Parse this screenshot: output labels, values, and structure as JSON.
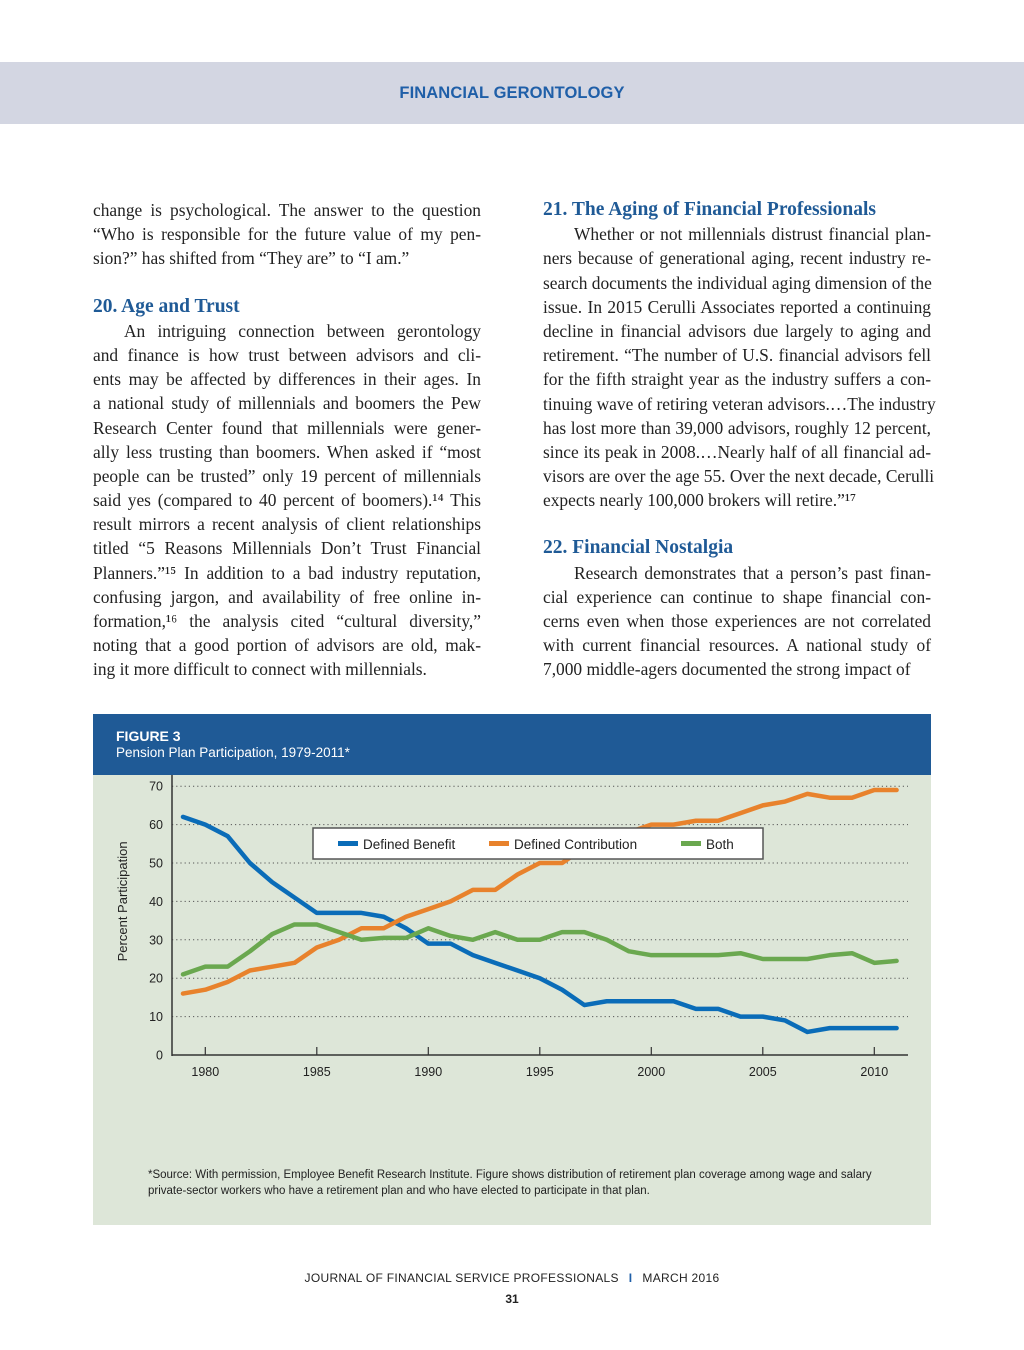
{
  "header": {
    "title": "FINANCIAL GERONTOLOGY"
  },
  "left_column": {
    "intro_lines": [
      "change is psychological. The answer to the question",
      "“Who is responsible for the future value of my pen-",
      "sion?” has shifted from “They are” to “I am.”"
    ],
    "section20": {
      "heading": "20. Age and Trust",
      "lines": [
        "An intriguing connection between gerontology",
        "and finance is how trust between advisors and cli-",
        "ents may be affected by differences in their ages. In",
        "a national study of millennials and boomers the Pew",
        "Research Center found that millennials were gener-",
        "ally less trusting than boomers. When asked if “most",
        "people can be trusted” only 19 percent of millennials",
        "said yes (compared to 40 percent of boomers).¹⁴ This",
        "result mirrors a recent analysis of client relationships",
        "titled “5 Reasons Millennials Don’t Trust Financial",
        "Planners.”¹⁵ In addition to a bad industry reputation,",
        "confusing jargon, and availability of free online in-",
        "formation,¹⁶ the analysis cited “cultural diversity,”",
        "noting that a good portion of advisors are old, mak-",
        "ing it more difficult to connect with millennials."
      ]
    }
  },
  "right_column": {
    "section21": {
      "heading": "21. The Aging of Financial Professionals",
      "lines": [
        "Whether or not millennials distrust financial plan-",
        "ners because of generational aging, recent industry re-",
        "search documents the individual aging dimension of the",
        "issue. In 2015 Cerulli Associates reported a continuing",
        "decline in financial advisors due largely to aging and",
        "retirement. “The number of U.S. financial advisors fell",
        "for the fifth straight year as the industry suffers a con-",
        "tinuing wave of retiring veteran advisors.…The industry",
        "has lost more than 39,000 advisors, roughly 12 percent,",
        "since its peak in 2008.…Nearly half of all financial ad-",
        "visors are over the age 55. Over the next decade, Cerulli",
        "expects nearly 100,000 brokers will retire.”¹⁷"
      ]
    },
    "section22": {
      "heading": "22. Financial Nostalgia",
      "lines": [
        "Research demonstrates that a person’s past finan-",
        "cial experience can continue to shape financial con-",
        "cerns even when those experiences are not correlated",
        "with current financial resources. A national study of",
        "7,000 middle-agers documented the strong impact of"
      ]
    }
  },
  "figure": {
    "label": "FIGURE 3",
    "title": "Pension Plan Participation, 1979-2011*",
    "note": "*Source: With permission, Employee Benefit Research Institute. Figure shows distribution of retirement plan coverage among wage and salary private-sector workers who have a retirement plan and who have elected to participate in that plan."
  },
  "chart_data": {
    "type": "line",
    "title": "Pension Plan Participation, 1979-2011*",
    "xlabel": "",
    "ylabel": "Percent Participation",
    "xlim": [
      1979,
      2011
    ],
    "ylim": [
      0,
      80
    ],
    "xticks": [
      1980,
      1985,
      1990,
      1995,
      2000,
      2005,
      2010
    ],
    "yticks": [
      0,
      10,
      20,
      30,
      40,
      50,
      60,
      70,
      80
    ],
    "grid": "horizontal dotted",
    "legend_position": "top-center",
    "x": [
      1979,
      1980,
      1981,
      1982,
      1983,
      1984,
      1985,
      1986,
      1987,
      1988,
      1989,
      1990,
      1991,
      1992,
      1993,
      1994,
      1995,
      1996,
      1997,
      1998,
      1999,
      2000,
      2001,
      2002,
      2003,
      2004,
      2005,
      2006,
      2007,
      2008,
      2009,
      2010,
      2011
    ],
    "series": [
      {
        "name": "Defined Benefit",
        "color": "#0a6cb8",
        "values": [
          62,
          60,
          57,
          50,
          45,
          41,
          37,
          37,
          37,
          36,
          33,
          29,
          29,
          26,
          24,
          22,
          20,
          17,
          13,
          14,
          14,
          14,
          14,
          12,
          12,
          10,
          10,
          9,
          6,
          7,
          7,
          7,
          7
        ]
      },
      {
        "name": "Defined Contribution",
        "color": "#e8822c",
        "values": [
          16,
          17,
          19,
          22,
          23,
          24,
          28,
          30,
          33,
          33,
          36,
          38,
          40,
          43,
          43,
          47,
          50,
          50,
          54,
          55,
          58,
          60,
          60,
          61,
          61,
          63,
          65,
          66,
          68,
          67,
          67,
          69,
          69
        ]
      },
      {
        "name": "Both",
        "color": "#6aa84f",
        "values": [
          21,
          23,
          23,
          27,
          31.5,
          34,
          34,
          32,
          30,
          30.5,
          30.5,
          33,
          31,
          30,
          32,
          30,
          30,
          32,
          32,
          30,
          27,
          26,
          26,
          26,
          26,
          26.5,
          25,
          25,
          25,
          26,
          26.5,
          24,
          24.5
        ]
      }
    ]
  },
  "footer": {
    "journal": "JOURNAL OF FINANCIAL SERVICE PROFESSIONALS",
    "separator": "I",
    "date": "MARCH 2016",
    "page": "31"
  }
}
